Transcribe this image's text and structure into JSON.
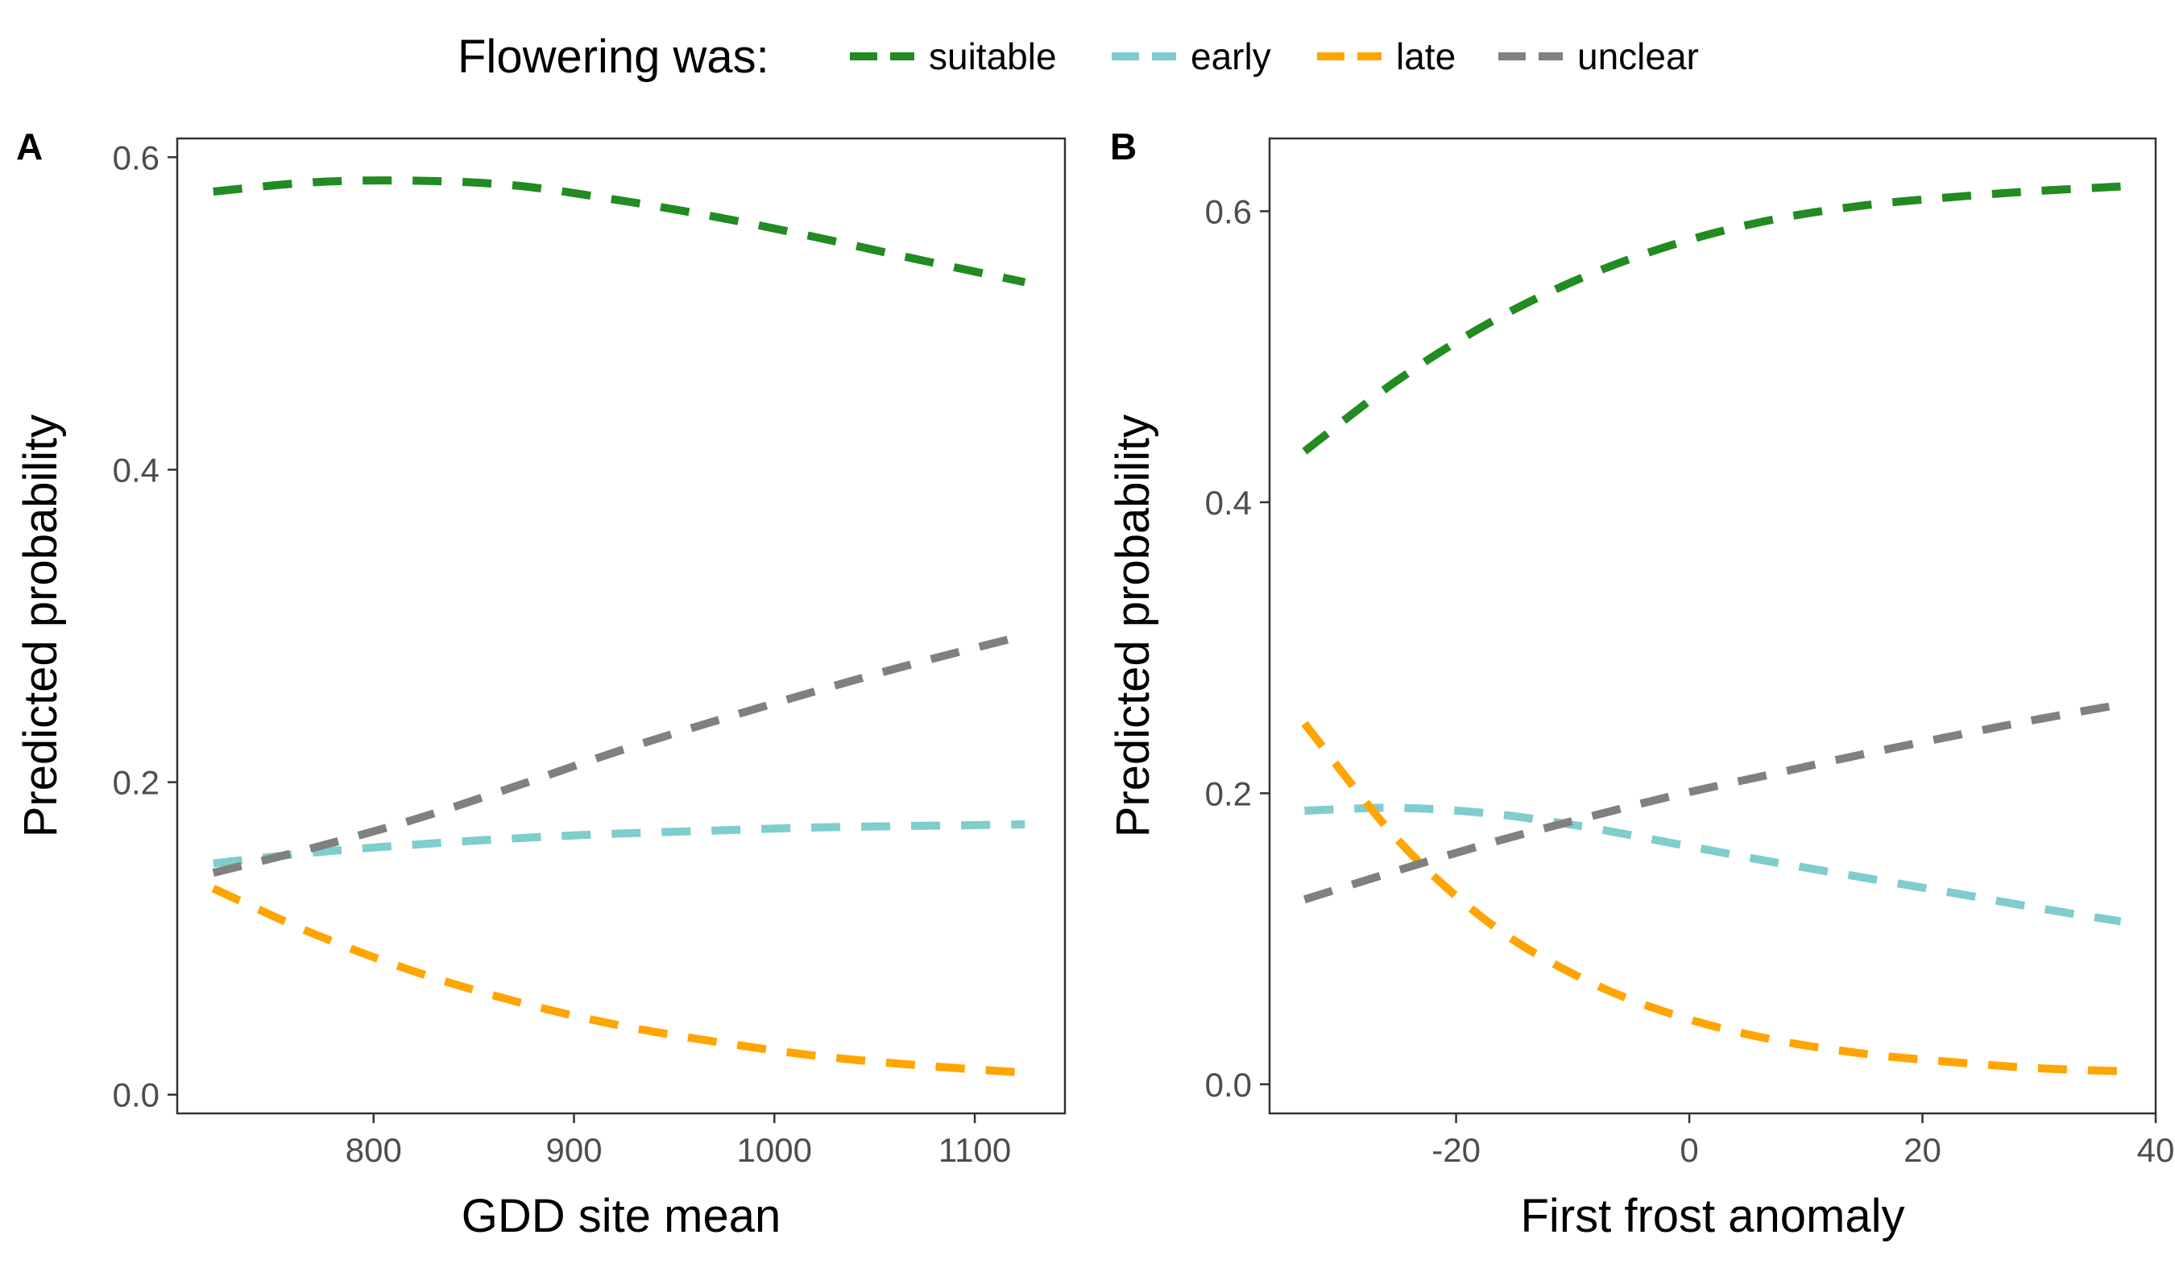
{
  "legend": {
    "title": "Flowering was:",
    "entries": [
      {
        "key": "suitable",
        "label": "suitable",
        "color": "#228B22"
      },
      {
        "key": "early",
        "label": "early",
        "color": "#7FCDCD"
      },
      {
        "key": "late",
        "label": "late",
        "color": "#FFA500"
      },
      {
        "key": "unclear",
        "label": "unclear",
        "color": "#808080"
      }
    ],
    "placement": "top"
  },
  "chart_data": [
    {
      "type": "line",
      "panel": "A",
      "xlabel": "GDD site mean",
      "ylabel": "Predicted probability",
      "xlim": [
        702,
        1145
      ],
      "ylim": [
        -0.012,
        0.612
      ],
      "xticks": [
        800,
        900,
        1000,
        1100
      ],
      "yticks": [
        0.0,
        0.2,
        0.4,
        0.6
      ],
      "xtick_labels": [
        "800",
        "900",
        "1000",
        "1100"
      ],
      "ytick_labels": [
        "0.0",
        "0.2",
        "0.4",
        "0.6"
      ],
      "grid": false,
      "line_style": "dashed",
      "x": [
        720,
        770,
        820,
        870,
        920,
        970,
        1020,
        1070,
        1125
      ],
      "series": [
        {
          "key": "suitable",
          "values": [
            0.578,
            0.584,
            0.585,
            0.582,
            0.573,
            0.562,
            0.549,
            0.535,
            0.52
          ]
        },
        {
          "key": "early",
          "values": [
            0.148,
            0.155,
            0.16,
            0.164,
            0.167,
            0.169,
            0.171,
            0.172,
            0.173
          ]
        },
        {
          "key": "late",
          "values": [
            0.132,
            0.103,
            0.079,
            0.06,
            0.045,
            0.034,
            0.025,
            0.019,
            0.014
          ]
        },
        {
          "key": "unclear",
          "values": [
            0.142,
            0.158,
            0.176,
            0.197,
            0.219,
            0.239,
            0.258,
            0.276,
            0.294
          ]
        }
      ]
    },
    {
      "type": "line",
      "panel": "B",
      "xlabel": "First frost anomaly",
      "ylabel": "Predicted probability",
      "xlim": [
        -36,
        40
      ],
      "ylim": [
        -0.02,
        0.65
      ],
      "xticks": [
        -20,
        0,
        20,
        40
      ],
      "yticks": [
        0.0,
        0.2,
        0.4,
        0.6
      ],
      "xtick_labels": [
        "-20",
        "0",
        "20",
        "40"
      ],
      "ytick_labels": [
        "0.0",
        "0.2",
        "0.4",
        "0.6"
      ],
      "grid": false,
      "line_style": "dashed",
      "x": [
        -33,
        -25,
        -17,
        -9,
        -1,
        7,
        15,
        23,
        30,
        37
      ],
      "series": [
        {
          "key": "suitable",
          "values": [
            0.435,
            0.484,
            0.524,
            0.555,
            0.578,
            0.594,
            0.604,
            0.61,
            0.614,
            0.617
          ]
        },
        {
          "key": "early",
          "values": [
            0.188,
            0.19,
            0.186,
            0.177,
            0.165,
            0.153,
            0.142,
            0.131,
            0.121,
            0.112
          ]
        },
        {
          "key": "late",
          "values": [
            0.248,
            0.168,
            0.11,
            0.072,
            0.047,
            0.031,
            0.021,
            0.015,
            0.011,
            0.009
          ]
        },
        {
          "key": "unclear",
          "values": [
            0.127,
            0.147,
            0.166,
            0.183,
            0.199,
            0.213,
            0.227,
            0.24,
            0.251,
            0.261
          ]
        }
      ]
    }
  ]
}
